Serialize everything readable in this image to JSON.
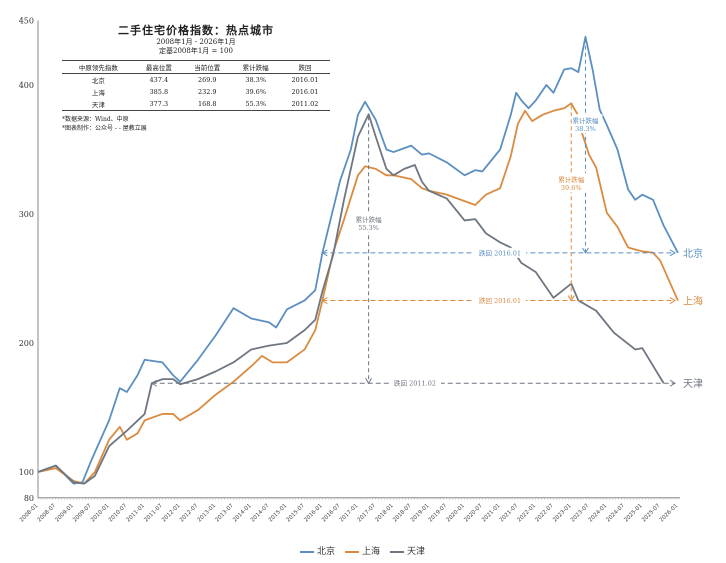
{
  "info": {
    "title": "二手住宅价格指数：热点城市",
    "range": "2008年1月 - 2026年1月",
    "base": "定基2008年1月 = 100",
    "headers": [
      "中原领先指数",
      "最高位置",
      "当前位置",
      "累计跌幅",
      "跌回"
    ],
    "rows": [
      [
        "北京",
        "437.4",
        "269.9",
        "38.3%",
        "2016.01"
      ],
      [
        "上海",
        "385.8",
        "232.9",
        "39.6%",
        "2016.01"
      ],
      [
        "天津",
        "377.3",
        "168.8",
        "55.3%",
        "2011.02"
      ]
    ],
    "notes": [
      "*数据来源：Wind、中原",
      "*图表制作：公众号 - - 屋教立展"
    ]
  },
  "chart_data": {
    "type": "line",
    "title": "二手住宅价格指数：热点城市",
    "ylim": [
      80,
      450
    ],
    "yticks": [
      80,
      100,
      200,
      300,
      400,
      450
    ],
    "xticks": [
      "2008-01",
      "2008-07",
      "2009-01",
      "2009-07",
      "2010-01",
      "2010-07",
      "2011-01",
      "2011-07",
      "2012-01",
      "2012-07",
      "2013-01",
      "2013-07",
      "2014-01",
      "2014-07",
      "2015-01",
      "2015-07",
      "2016-01",
      "2016-07",
      "2017-01",
      "2017-07",
      "2018-01",
      "2018-07",
      "2019-01",
      "2019-07",
      "2020-01",
      "2020-07",
      "2021-01",
      "2021-07",
      "2022-01",
      "2022-07",
      "2023-01",
      "2023-07",
      "2024-01",
      "2024-07",
      "2025-01",
      "2025-07",
      "2026-01"
    ],
    "grid": false,
    "legend": "bottom",
    "series": [
      {
        "name": "北京",
        "color": "#5b8fc2",
        "points": [
          [
            2008,
            100
          ],
          [
            2008.5,
            105
          ],
          [
            2009,
            91
          ],
          [
            2009.25,
            92
          ],
          [
            2009.5,
            109
          ],
          [
            2010,
            140
          ],
          [
            2010.3,
            165
          ],
          [
            2010.5,
            162
          ],
          [
            2010.8,
            175
          ],
          [
            2011,
            187
          ],
          [
            2011.5,
            185
          ],
          [
            2011.8,
            175
          ],
          [
            2012,
            170
          ],
          [
            2012.5,
            187
          ],
          [
            2013,
            206
          ],
          [
            2013.5,
            227
          ],
          [
            2014,
            219
          ],
          [
            2014.5,
            216
          ],
          [
            2014.7,
            212
          ],
          [
            2015,
            226
          ],
          [
            2015.5,
            233
          ],
          [
            2015.8,
            241
          ],
          [
            2016,
            269.9
          ],
          [
            2016.5,
            326
          ],
          [
            2016.8,
            350
          ],
          [
            2017,
            377
          ],
          [
            2017.2,
            387
          ],
          [
            2017.5,
            373
          ],
          [
            2017.8,
            350
          ],
          [
            2018,
            348
          ],
          [
            2018.5,
            353
          ],
          [
            2018.8,
            346
          ],
          [
            2019,
            347
          ],
          [
            2019.5,
            340
          ],
          [
            2020,
            330
          ],
          [
            2020.3,
            334
          ],
          [
            2020.5,
            333
          ],
          [
            2021,
            350
          ],
          [
            2021.3,
            377
          ],
          [
            2021.45,
            394
          ],
          [
            2021.6,
            388
          ],
          [
            2021.8,
            382
          ],
          [
            2022,
            388
          ],
          [
            2022.3,
            400
          ],
          [
            2022.5,
            394
          ],
          [
            2022.8,
            412
          ],
          [
            2023,
            413
          ],
          [
            2023.2,
            410
          ],
          [
            2023.4,
            437.4
          ],
          [
            2023.6,
            412
          ],
          [
            2023.8,
            381
          ],
          [
            2024,
            369
          ],
          [
            2024.3,
            350
          ],
          [
            2024.6,
            319
          ],
          [
            2024.8,
            311
          ],
          [
            2025,
            315
          ],
          [
            2025.3,
            311
          ],
          [
            2025.6,
            291
          ],
          [
            2026,
            269.9
          ]
        ]
      },
      {
        "name": "上海",
        "color": "#d98b40",
        "points": [
          [
            2008,
            100
          ],
          [
            2008.5,
            103
          ],
          [
            2009,
            93
          ],
          [
            2009.3,
            91
          ],
          [
            2009.6,
            100
          ],
          [
            2010,
            125
          ],
          [
            2010.3,
            135
          ],
          [
            2010.5,
            125
          ],
          [
            2010.8,
            130
          ],
          [
            2011,
            140
          ],
          [
            2011.5,
            145
          ],
          [
            2011.8,
            145
          ],
          [
            2012,
            140
          ],
          [
            2012.5,
            148
          ],
          [
            2013,
            160
          ],
          [
            2013.5,
            170
          ],
          [
            2014,
            182
          ],
          [
            2014.3,
            190
          ],
          [
            2014.6,
            185
          ],
          [
            2015,
            185
          ],
          [
            2015.5,
            195
          ],
          [
            2015.8,
            210
          ],
          [
            2016,
            232.9
          ],
          [
            2016.3,
            270
          ],
          [
            2016.6,
            295
          ],
          [
            2017,
            330
          ],
          [
            2017.2,
            337
          ],
          [
            2017.5,
            335
          ],
          [
            2017.8,
            330
          ],
          [
            2018,
            330
          ],
          [
            2018.5,
            327
          ],
          [
            2018.8,
            320
          ],
          [
            2019,
            318
          ],
          [
            2019.5,
            315
          ],
          [
            2020,
            310
          ],
          [
            2020.3,
            307
          ],
          [
            2020.6,
            315
          ],
          [
            2021,
            320
          ],
          [
            2021.3,
            345
          ],
          [
            2021.5,
            370
          ],
          [
            2021.7,
            380
          ],
          [
            2021.9,
            372
          ],
          [
            2022.2,
            377
          ],
          [
            2022.5,
            380
          ],
          [
            2022.8,
            382
          ],
          [
            2023,
            385.8
          ],
          [
            2023.2,
            376
          ],
          [
            2023.3,
            363
          ],
          [
            2023.5,
            346
          ],
          [
            2023.7,
            336
          ],
          [
            2024,
            301
          ],
          [
            2024.3,
            290
          ],
          [
            2024.6,
            274
          ],
          [
            2025,
            271
          ],
          [
            2025.3,
            270
          ],
          [
            2025.5,
            264
          ],
          [
            2026,
            232.9
          ]
        ]
      },
      {
        "name": "天津",
        "color": "#6e7681",
        "points": [
          [
            2008,
            100
          ],
          [
            2008.5,
            105
          ],
          [
            2009,
            92
          ],
          [
            2009.3,
            91
          ],
          [
            2009.6,
            97
          ],
          [
            2010,
            120
          ],
          [
            2010.5,
            132
          ],
          [
            2011,
            145
          ],
          [
            2011.2,
            168.8
          ],
          [
            2011.5,
            172
          ],
          [
            2011.8,
            172
          ],
          [
            2012,
            168
          ],
          [
            2012.5,
            172
          ],
          [
            2013,
            178
          ],
          [
            2013.5,
            185
          ],
          [
            2014,
            195
          ],
          [
            2014.5,
            198
          ],
          [
            2015,
            200
          ],
          [
            2015.5,
            210
          ],
          [
            2015.8,
            218
          ],
          [
            2016,
            240
          ],
          [
            2016.3,
            268
          ],
          [
            2016.6,
            310
          ],
          [
            2017,
            360
          ],
          [
            2017.3,
            377.3
          ],
          [
            2017.5,
            360
          ],
          [
            2017.8,
            335
          ],
          [
            2018,
            330
          ],
          [
            2018.3,
            335
          ],
          [
            2018.6,
            338
          ],
          [
            2018.8,
            325
          ],
          [
            2019,
            318
          ],
          [
            2019.5,
            312
          ],
          [
            2020,
            295
          ],
          [
            2020.3,
            296
          ],
          [
            2020.6,
            285
          ],
          [
            2021,
            278
          ],
          [
            2021.3,
            274
          ],
          [
            2021.6,
            262
          ],
          [
            2022,
            255
          ],
          [
            2022.5,
            235
          ],
          [
            2023,
            246
          ],
          [
            2023.2,
            233
          ],
          [
            2023.7,
            225
          ],
          [
            2024.2,
            208
          ],
          [
            2024.8,
            195
          ],
          [
            2025,
            196
          ],
          [
            2025.6,
            168.8
          ]
        ]
      }
    ],
    "annotations": [
      {
        "city": "北京",
        "drop_label": "累计跌幅",
        "drop_pct": "38.3%",
        "back_label": "跌回 2016.01",
        "peak": [
          2023.4,
          437.4
        ],
        "level": 269.9,
        "from": 2016,
        "color": "#5b8fc2"
      },
      {
        "city": "上海",
        "drop_label": "累计跌幅",
        "drop_pct": "39.6%",
        "back_label": "跌回 2016.01",
        "peak": [
          2023,
          385.8
        ],
        "level": 232.9,
        "from": 2016,
        "color": "#d98b40"
      },
      {
        "city": "天津",
        "drop_label": "累计跌幅",
        "drop_pct": "55.3%",
        "back_label": "跌回 2011.02",
        "peak": [
          2017.3,
          377.3
        ],
        "level": 168.8,
        "from": 2011.2,
        "color": "#6e7681"
      }
    ]
  }
}
